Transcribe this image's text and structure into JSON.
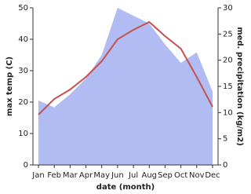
{
  "chart_data": {
    "type": "line",
    "x_label": "date (month)",
    "y_label": "max temp (C)",
    "y2_label": "med. precipitation (kg/m2)",
    "categories": [
      "Jan",
      "Feb",
      "Mar",
      "Apr",
      "May",
      "Jun",
      "Jul",
      "Aug",
      "Sep",
      "Oct",
      "Nov",
      "Dec"
    ],
    "ylim": [
      0,
      50
    ],
    "yticks": [
      0,
      10,
      20,
      30,
      40,
      50
    ],
    "y2lim": [
      0,
      30
    ],
    "y2ticks": [
      0,
      5,
      10,
      15,
      20,
      25,
      30
    ],
    "series": [
      {
        "name": "med. precipitation",
        "type": "area",
        "axis": "y2",
        "color": "#b0bcf2",
        "values": [
          12.3,
          11,
          13.5,
          16.5,
          21,
          30,
          28.5,
          27,
          23,
          19.5,
          21.5,
          14
        ]
      },
      {
        "name": "max temp",
        "type": "line",
        "axis": "y",
        "color": "#c8504f",
        "values": [
          16,
          21,
          24,
          28,
          33,
          40,
          43,
          45.5,
          41,
          37,
          28,
          18.5
        ]
      }
    ]
  }
}
